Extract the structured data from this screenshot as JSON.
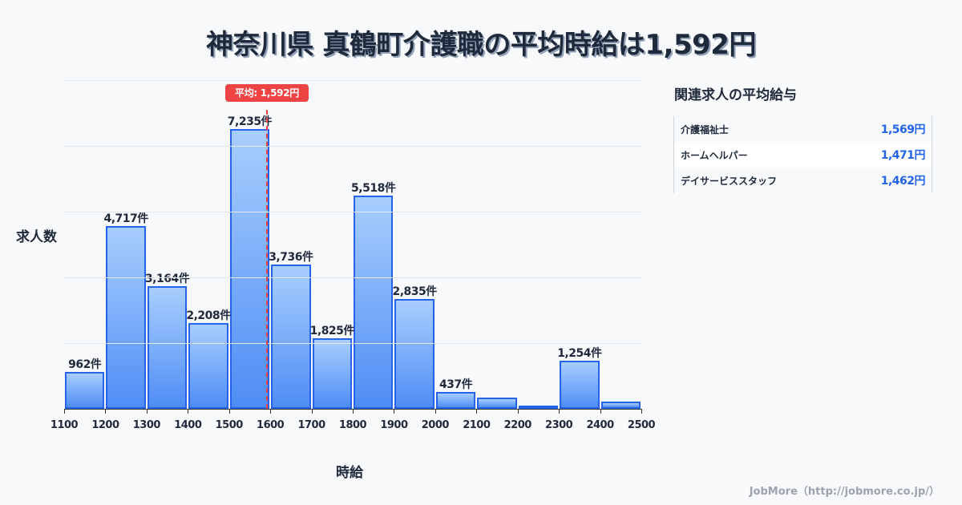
{
  "title": "神奈川県 真鶴町介護職の平均時給は1,592円",
  "chart_data": {
    "type": "bar",
    "title": "神奈川県 真鶴町介護職の平均時給は1,592円",
    "xlabel": "時給",
    "ylabel": "求人数",
    "bin_edges": [
      1100,
      1200,
      1300,
      1400,
      1500,
      1600,
      1700,
      1800,
      1900,
      2000,
      2100,
      2200,
      2300,
      2400,
      2500
    ],
    "categories": [
      "1100-1200",
      "1200-1300",
      "1300-1400",
      "1400-1500",
      "1500-1600",
      "1600-1700",
      "1700-1800",
      "1800-1900",
      "1900-2000",
      "2000-2100",
      "2100-2200",
      "2200-2300",
      "2300-2400",
      "2400-2500"
    ],
    "values": [
      962,
      4717,
      3164,
      2208,
      7235,
      3736,
      1825,
      5518,
      2835,
      437,
      290,
      80,
      1254,
      190
    ],
    "labels": [
      "962件",
      "4,717件",
      "3,164件",
      "2,208件",
      "7,235件",
      "3,736件",
      "1,825件",
      "5,518件",
      "2,835件",
      "437件",
      "",
      "",
      "1,254件",
      ""
    ],
    "xticks": [
      "1100",
      "1200",
      "1300",
      "1400",
      "1500",
      "1600",
      "1700",
      "1800",
      "1900",
      "2000",
      "2100",
      "2200",
      "2300",
      "2400",
      "2500"
    ],
    "xlim": [
      1100,
      2500
    ],
    "ylim": [
      0,
      8500
    ],
    "grid": true,
    "annotations": [
      {
        "type": "vline",
        "x": 1592,
        "label": "平均: 1,592円",
        "color": "#ef4444",
        "style": "dashed"
      }
    ],
    "bar_color": "#4f8df5",
    "bar_edge_color": "#2563eb"
  },
  "average_badge": "平均: 1,592円",
  "related": {
    "title": "関連求人の平均給与",
    "rows": [
      {
        "name": "介護福祉士",
        "value": "1,569円"
      },
      {
        "name": "ホームヘルパー",
        "value": "1,471円"
      },
      {
        "name": "デイサービススタッフ",
        "value": "1,462円"
      }
    ]
  },
  "footer": "JobMore（http://jobmore.co.jp/）"
}
